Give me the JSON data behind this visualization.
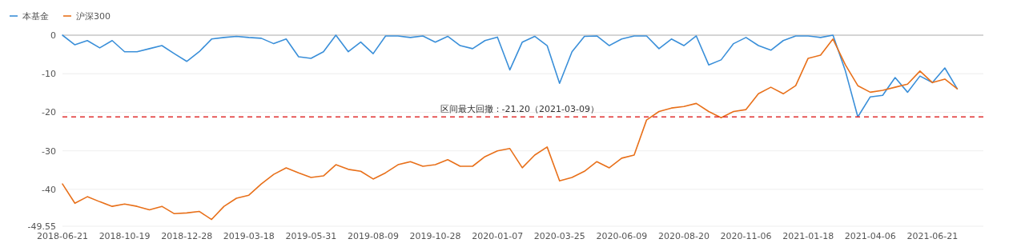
{
  "chart_data": {
    "type": "line",
    "categories": [
      "2018-06-21",
      null,
      null,
      null,
      null,
      "2018-10-19",
      null,
      null,
      null,
      null,
      "2018-12-28",
      null,
      null,
      null,
      null,
      "2019-03-18",
      null,
      null,
      null,
      null,
      "2019-05-31",
      null,
      null,
      null,
      null,
      "2019-08-09",
      null,
      null,
      null,
      null,
      "2019-10-28",
      null,
      null,
      null,
      null,
      "2020-01-07",
      null,
      null,
      null,
      null,
      "2020-03-25",
      null,
      null,
      null,
      null,
      "2020-06-09",
      null,
      null,
      null,
      null,
      "2020-08-20",
      null,
      null,
      null,
      null,
      "2020-11-06",
      null,
      null,
      null,
      null,
      "2021-01-18",
      null,
      null,
      null,
      null,
      "2021-04-06",
      null,
      null,
      null,
      null,
      "2021-06-21",
      null,
      null
    ],
    "series": [
      {
        "name": "本基金",
        "color": "#3a8fd9",
        "values": [
          0,
          -2.5,
          -1.4,
          -3.3,
          -1.4,
          -4.3,
          -4.3,
          -3.5,
          -2.7,
          -4.8,
          -6.8,
          -4.3,
          -1,
          -0.6,
          -0.3,
          -0.6,
          -0.8,
          -2.2,
          -1,
          -5.6,
          -6,
          -4.3,
          0,
          -4.3,
          -1.8,
          -4.8,
          -0.2,
          -0.2,
          -0.6,
          -0.2,
          -1.8,
          -0.3,
          -2.7,
          -3.5,
          -1.4,
          -0.5,
          -9,
          -1.8,
          -0.3,
          -2.7,
          -12.5,
          -4.3,
          -0.3,
          -0.2,
          -2.7,
          -1,
          -0.2,
          -0.2,
          -3.5,
          -1,
          -2.7,
          -0.2,
          -7.7,
          -6.4,
          -2.2,
          -0.6,
          -2.7,
          -3.9,
          -1.4,
          -0.2,
          -0.2,
          -0.6,
          0,
          -9.3,
          -21.2,
          -16,
          -15.6,
          -11,
          -14.8,
          -10.6,
          -12.3,
          -8.5,
          -13.9
        ]
      },
      {
        "name": "沪深300",
        "color": "#e8701a",
        "values": [
          -38.6,
          -43.6,
          -41.9,
          -43.2,
          -44.4,
          -43.8,
          -44.4,
          -45.3,
          -44.4,
          -46.3,
          -46.1,
          -45.7,
          -47.8,
          -44.4,
          -42.3,
          -41.5,
          -38.6,
          -36.1,
          -34.4,
          -35.7,
          -36.9,
          -36.5,
          -33.6,
          -34.8,
          -35.3,
          -37.3,
          -35.7,
          -33.6,
          -32.8,
          -34,
          -33.6,
          -32.3,
          -34,
          -34,
          -31.5,
          -30,
          -29.4,
          -34.4,
          -31.1,
          -29,
          -37.8,
          -36.9,
          -35.3,
          -32.8,
          -34.4,
          -31.9,
          -31.1,
          -22,
          -19.8,
          -18.9,
          -18.5,
          -17.7,
          -19.8,
          -21.4,
          -19.8,
          -19.3,
          -15.2,
          -13.5,
          -15.2,
          -13.1,
          -6,
          -5.2,
          -1,
          -7.7,
          -13.1,
          -14.8,
          -14.3,
          -13.5,
          -12.7,
          -9.3,
          -12.3,
          -11.4,
          -13.9
        ]
      }
    ],
    "ylim": [
      -49.55,
      0
    ],
    "yticks": [
      0,
      -10,
      -20,
      -30,
      -40,
      -49.55
    ],
    "grid": "y",
    "legend": "top left",
    "ref_lines": [
      {
        "axis": "y",
        "value": -21.2,
        "label": "区间最大回撤：-21.20（2021-03-09）",
        "color": "#e03030",
        "line_style": "dashed"
      }
    ]
  }
}
